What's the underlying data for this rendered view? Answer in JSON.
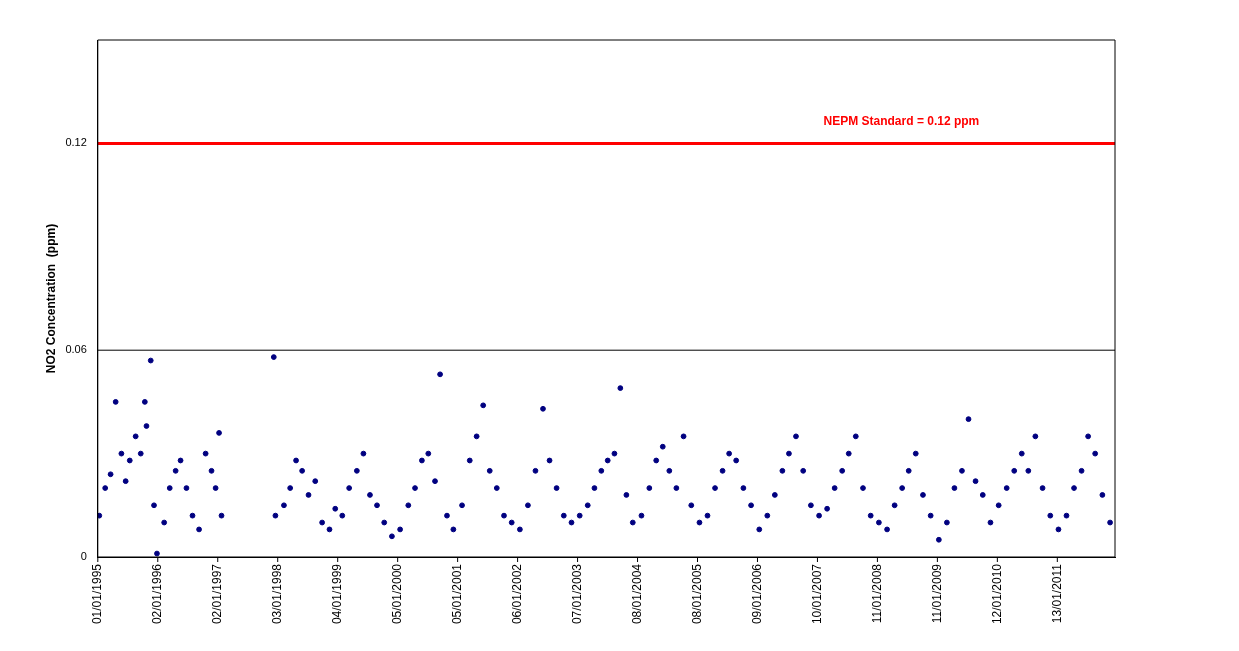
{
  "chart_data": {
    "type": "scatter",
    "ylabel": "NO2 Concentration  (ppm)",
    "marker": "circle",
    "grid": false,
    "legend": false,
    "xlim": [
      "1995-01-01",
      "2011-12-31"
    ],
    "xticks": [
      {
        "value": "1995-01-01",
        "label": "01/01/1995"
      },
      {
        "value": "1996-01-02",
        "label": "02/01/1996"
      },
      {
        "value": "1997-01-02",
        "label": "02/01/1997"
      },
      {
        "value": "1998-01-03",
        "label": "03/01/1998"
      },
      {
        "value": "1999-01-04",
        "label": "04/01/1999"
      },
      {
        "value": "2000-01-05",
        "label": "05/01/2000"
      },
      {
        "value": "2001-01-05",
        "label": "05/01/2001"
      },
      {
        "value": "2002-01-06",
        "label": "06/01/2002"
      },
      {
        "value": "2003-01-07",
        "label": "07/01/2003"
      },
      {
        "value": "2004-01-08",
        "label": "08/01/2004"
      },
      {
        "value": "2005-01-08",
        "label": "08/01/2005"
      },
      {
        "value": "2006-01-09",
        "label": "09/01/2006"
      },
      {
        "value": "2007-01-10",
        "label": "10/01/2007"
      },
      {
        "value": "2008-01-11",
        "label": "11/01/2008"
      },
      {
        "value": "2009-01-11",
        "label": "11/01/2009"
      },
      {
        "value": "2010-01-12",
        "label": "12/01/2010"
      },
      {
        "value": "2011-01-13",
        "label": "13/01/2011"
      }
    ],
    "ylim": [
      0,
      0.15
    ],
    "yticks": [
      0,
      0.06,
      0.12
    ],
    "ref_lines": [
      {
        "axis": "y",
        "value": 0.06,
        "color": "#000000"
      },
      {
        "axis": "y",
        "value": 0.12,
        "label": "NEPM Standard = 0.12 ppm",
        "color": "#ff0000"
      }
    ],
    "series": [
      {
        "color": "#000080",
        "x": [
          "1995-01-10",
          "1995-02-15",
          "1995-03-20",
          "1995-04-20",
          "1995-05-25",
          "1995-06-20",
          "1995-07-15",
          "1995-08-20",
          "1995-09-20",
          "1995-10-15",
          "1995-10-25",
          "1995-11-20",
          "1995-12-10",
          "1995-12-28",
          "1996-02-10",
          "1996-03-15",
          "1996-04-20",
          "1996-05-20",
          "1996-06-25",
          "1996-08-01",
          "1996-09-10",
          "1996-10-20",
          "1996-11-25",
          "1996-12-20",
          "1997-01-10",
          "1997-01-25",
          "1997-12-10",
          "1997-12-20",
          "1998-02-10",
          "1998-03-20",
          "1998-04-25",
          "1998-06-01",
          "1998-07-10",
          "1998-08-20",
          "1998-10-01",
          "1998-11-15",
          "1998-12-20",
          "1999-02-01",
          "1999-03-15",
          "1999-05-01",
          "1999-06-10",
          "1999-07-20",
          "1999-09-01",
          "1999-10-15",
          "1999-12-01",
          "2000-01-20",
          "2000-03-10",
          "2000-04-20",
          "2000-06-01",
          "2000-07-10",
          "2000-08-20",
          "2000-09-20",
          "2000-11-01",
          "2000-12-10",
          "2001-02-01",
          "2001-03-20",
          "2001-05-01",
          "2001-06-10",
          "2001-07-20",
          "2001-09-01",
          "2001-10-15",
          "2001-12-01",
          "2002-01-20",
          "2002-03-10",
          "2002-04-25",
          "2002-06-10",
          "2002-07-20",
          "2002-09-01",
          "2002-10-15",
          "2002-12-01",
          "2003-01-20",
          "2003-03-10",
          "2003-04-20",
          "2003-06-01",
          "2003-07-10",
          "2003-08-20",
          "2003-09-25",
          "2003-11-01",
          "2003-12-10",
          "2004-02-01",
          "2004-03-20",
          "2004-05-01",
          "2004-06-10",
          "2004-07-20",
          "2004-09-01",
          "2004-10-15",
          "2004-12-01",
          "2005-01-20",
          "2005-03-10",
          "2005-04-25",
          "2005-06-10",
          "2005-07-20",
          "2005-09-01",
          "2005-10-15",
          "2005-12-01",
          "2006-01-20",
          "2006-03-10",
          "2006-04-25",
          "2006-06-10",
          "2006-07-20",
          "2006-09-01",
          "2006-10-15",
          "2006-12-01",
          "2007-01-20",
          "2007-03-10",
          "2007-04-25",
          "2007-06-10",
          "2007-07-20",
          "2007-09-01",
          "2007-10-15",
          "2007-12-01",
          "2008-01-20",
          "2008-03-10",
          "2008-04-25",
          "2008-06-10",
          "2008-07-20",
          "2008-09-01",
          "2008-10-15",
          "2008-12-01",
          "2009-01-20",
          "2009-03-10",
          "2009-04-25",
          "2009-06-10",
          "2009-07-20",
          "2009-09-01",
          "2009-10-15",
          "2009-12-01",
          "2010-01-20",
          "2010-03-10",
          "2010-04-25",
          "2010-06-10",
          "2010-07-20",
          "2010-09-01",
          "2010-10-15",
          "2010-12-01",
          "2011-01-20",
          "2011-03-10",
          "2011-04-25",
          "2011-06-10",
          "2011-07-20",
          "2011-09-01",
          "2011-10-15",
          "2011-12-01"
        ],
        "values": [
          0.012,
          0.02,
          0.024,
          0.045,
          0.03,
          0.022,
          0.028,
          0.035,
          0.03,
          0.045,
          0.038,
          0.057,
          0.015,
          0.001,
          0.01,
          0.02,
          0.025,
          0.028,
          0.02,
          0.012,
          0.008,
          0.03,
          0.025,
          0.02,
          0.036,
          0.012,
          0.058,
          0.012,
          0.015,
          0.02,
          0.028,
          0.025,
          0.018,
          0.022,
          0.01,
          0.008,
          0.014,
          0.012,
          0.02,
          0.025,
          0.03,
          0.018,
          0.015,
          0.01,
          0.006,
          0.008,
          0.015,
          0.02,
          0.028,
          0.03,
          0.022,
          0.053,
          0.012,
          0.008,
          0.015,
          0.028,
          0.035,
          0.044,
          0.025,
          0.02,
          0.012,
          0.01,
          0.008,
          0.015,
          0.025,
          0.043,
          0.028,
          0.02,
          0.012,
          0.01,
          0.012,
          0.015,
          0.02,
          0.025,
          0.028,
          0.03,
          0.049,
          0.018,
          0.01,
          0.012,
          0.02,
          0.028,
          0.032,
          0.025,
          0.02,
          0.035,
          0.015,
          0.01,
          0.012,
          0.02,
          0.025,
          0.03,
          0.028,
          0.02,
          0.015,
          0.008,
          0.012,
          0.018,
          0.025,
          0.03,
          0.035,
          0.025,
          0.015,
          0.012,
          0.014,
          0.02,
          0.025,
          0.03,
          0.035,
          0.02,
          0.012,
          0.01,
          0.008,
          0.015,
          0.02,
          0.025,
          0.03,
          0.018,
          0.012,
          0.005,
          0.01,
          0.02,
          0.025,
          0.04,
          0.022,
          0.018,
          0.01,
          0.015,
          0.02,
          0.025,
          0.03,
          0.025,
          0.035,
          0.02,
          0.012,
          0.008,
          0.012,
          0.02,
          0.025,
          0.035,
          0.03,
          0.018,
          0.01
        ]
      }
    ]
  }
}
